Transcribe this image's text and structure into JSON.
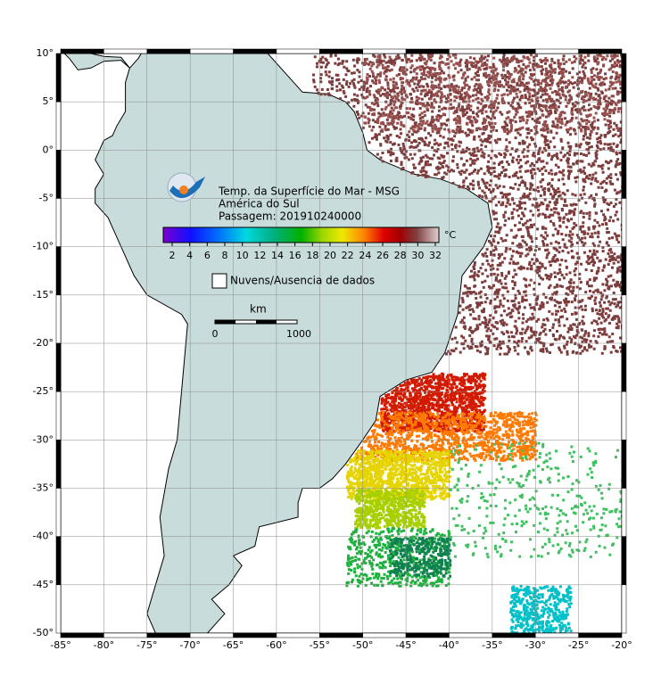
{
  "map": {
    "title_lines": [
      "Temp. da Superfície do Mar - MSG",
      "América do Sul",
      "Passagem: 201910240000"
    ],
    "colorbar": {
      "ticks": [
        2,
        4,
        6,
        8,
        10,
        12,
        14,
        16,
        18,
        20,
        22,
        24,
        26,
        28,
        30,
        32
      ],
      "unit": "°C"
    },
    "legend": "Nuvens/Ausencia de dados",
    "scale_bar": {
      "unit": "km",
      "ticks": [
        0,
        1000
      ]
    },
    "lon_ticks": [
      {
        "value": -85,
        "label": "-85°"
      },
      {
        "value": -80,
        "label": "-80°"
      },
      {
        "value": -75,
        "label": "-75°"
      },
      {
        "value": -70,
        "label": "-70°"
      },
      {
        "value": -65,
        "label": "-65°"
      },
      {
        "value": -60,
        "label": "-60°"
      },
      {
        "value": -55,
        "label": "-55°"
      },
      {
        "value": -50,
        "label": "-50°"
      },
      {
        "value": -45,
        "label": "-45°"
      },
      {
        "value": -40,
        "label": "-40°"
      },
      {
        "value": -35,
        "label": "-35°"
      },
      {
        "value": -30,
        "label": "-30°"
      },
      {
        "value": -25,
        "label": "-25°"
      },
      {
        "value": -20,
        "label": "-20°"
      }
    ],
    "lat_ticks": [
      {
        "value": 10,
        "label": "10°"
      },
      {
        "value": 5,
        "label": "5°"
      },
      {
        "value": 0,
        "label": "0°"
      },
      {
        "value": -5,
        "label": "-5°"
      },
      {
        "value": -10,
        "label": "-10°"
      },
      {
        "value": -15,
        "label": "-15°"
      },
      {
        "value": -20,
        "label": "-20°"
      },
      {
        "value": -25,
        "label": "-25°"
      },
      {
        "value": -30,
        "label": "-30°"
      },
      {
        "value": -35,
        "label": "-35°"
      },
      {
        "value": -40,
        "label": "-40°"
      },
      {
        "value": -45,
        "label": "-45°"
      },
      {
        "value": -50,
        "label": "-50°"
      }
    ]
  }
}
